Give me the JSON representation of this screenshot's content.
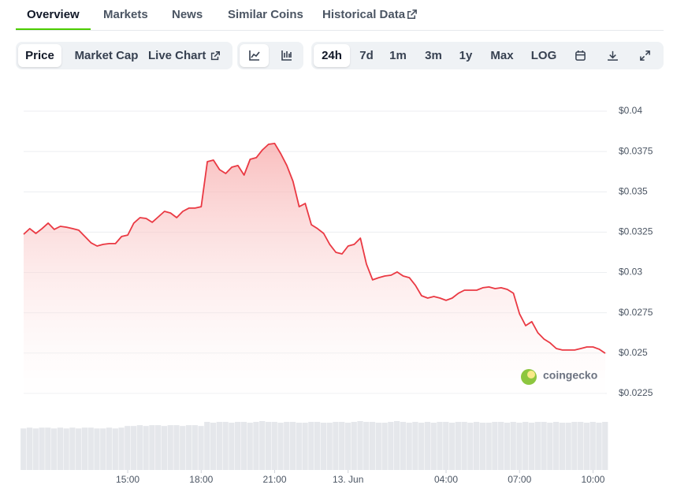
{
  "tabs": [
    "Overview",
    "Markets",
    "News",
    "Similar Coins",
    "Historical Data"
  ],
  "metric_buttons": [
    "Price",
    "Market Cap",
    "Live Chart"
  ],
  "range_buttons": [
    "24h",
    "7d",
    "1m",
    "3m",
    "1y",
    "Max",
    "LOG"
  ],
  "watermark": "coingecko",
  "chart_data": {
    "type": "line",
    "series": [
      {
        "color": "#ea3943",
        "values": [
          0.03237,
          0.03272,
          0.03242,
          0.03272,
          0.03306,
          0.03267,
          0.03286,
          0.03281,
          0.03272,
          0.03262,
          0.03223,
          0.03184,
          0.03164,
          0.03174,
          0.03179,
          0.03179,
          0.03223,
          0.03232,
          0.03306,
          0.0334,
          0.03335,
          0.03311,
          0.03345,
          0.03379,
          0.03369,
          0.0334,
          0.03379,
          0.03399,
          0.03399,
          0.03408,
          0.03687,
          0.03697,
          0.03638,
          0.03614,
          0.03653,
          0.03663,
          0.03604,
          0.03702,
          0.03712,
          0.0376,
          0.03795,
          0.038,
          0.03736,
          0.03663,
          0.03565,
          0.03408,
          0.03428,
          0.03296,
          0.03272,
          0.03242,
          0.03174,
          0.03125,
          0.03115,
          0.03164,
          0.03174,
          0.03213,
          0.03052,
          0.02954,
          0.02968,
          0.02978,
          0.02983,
          0.03003,
          0.02978,
          0.02968,
          0.0292,
          0.02856,
          0.02841,
          0.02851,
          0.02841,
          0.02827,
          0.02841,
          0.02871,
          0.0289,
          0.0289,
          0.0289,
          0.02905,
          0.0291,
          0.029,
          0.02905,
          0.02895,
          0.02871,
          0.02744,
          0.0267,
          0.02695,
          0.02626,
          0.02587,
          0.02563,
          0.02528,
          0.02519,
          0.02519,
          0.02519,
          0.02528,
          0.02538,
          0.02538,
          0.02524,
          0.02499
        ]
      }
    ],
    "volume": [
      51,
      52,
      51,
      52,
      52,
      51,
      52,
      51,
      52,
      51,
      52,
      52,
      51,
      51,
      52,
      51,
      52,
      54,
      54,
      55,
      54,
      55,
      55,
      54,
      55,
      55,
      54,
      55,
      55,
      54,
      59,
      58,
      59,
      59,
      58,
      59,
      59,
      58,
      59,
      60,
      59,
      59,
      58,
      59,
      59,
      58,
      58,
      59,
      59,
      58,
      58,
      59,
      59,
      58,
      59,
      60,
      59,
      59,
      58,
      58,
      59,
      60,
      59,
      58,
      59,
      58,
      59,
      58,
      59,
      59,
      58,
      59,
      59,
      58,
      59,
      58,
      58,
      59,
      59,
      58,
      59,
      58,
      59,
      58,
      59,
      59,
      58,
      59,
      58,
      58,
      59,
      59,
      58,
      59,
      58,
      59
    ],
    "xlim": [
      0,
      95
    ],
    "xticks": [
      {
        "value": 17,
        "label": "15:00"
      },
      {
        "value": 29,
        "label": "18:00"
      },
      {
        "value": 41,
        "label": "21:00"
      },
      {
        "value": 53,
        "label": "13. Jun"
      },
      {
        "value": 69,
        "label": "04:00"
      },
      {
        "value": 81,
        "label": "07:00"
      },
      {
        "value": 93,
        "label": "10:00"
      }
    ],
    "ylim": [
      0.0222,
      0.0412
    ],
    "yticks": [
      {
        "value": 0.0225,
        "label": "$0.0225"
      },
      {
        "value": 0.025,
        "label": "$0.025"
      },
      {
        "value": 0.0275,
        "label": "$0.0275"
      },
      {
        "value": 0.03,
        "label": "$0.03"
      },
      {
        "value": 0.0325,
        "label": "$0.0325"
      },
      {
        "value": 0.035,
        "label": "$0.035"
      },
      {
        "value": 0.0375,
        "label": "$0.0375"
      },
      {
        "value": 0.04,
        "label": "$0.04"
      }
    ],
    "grid": true
  }
}
